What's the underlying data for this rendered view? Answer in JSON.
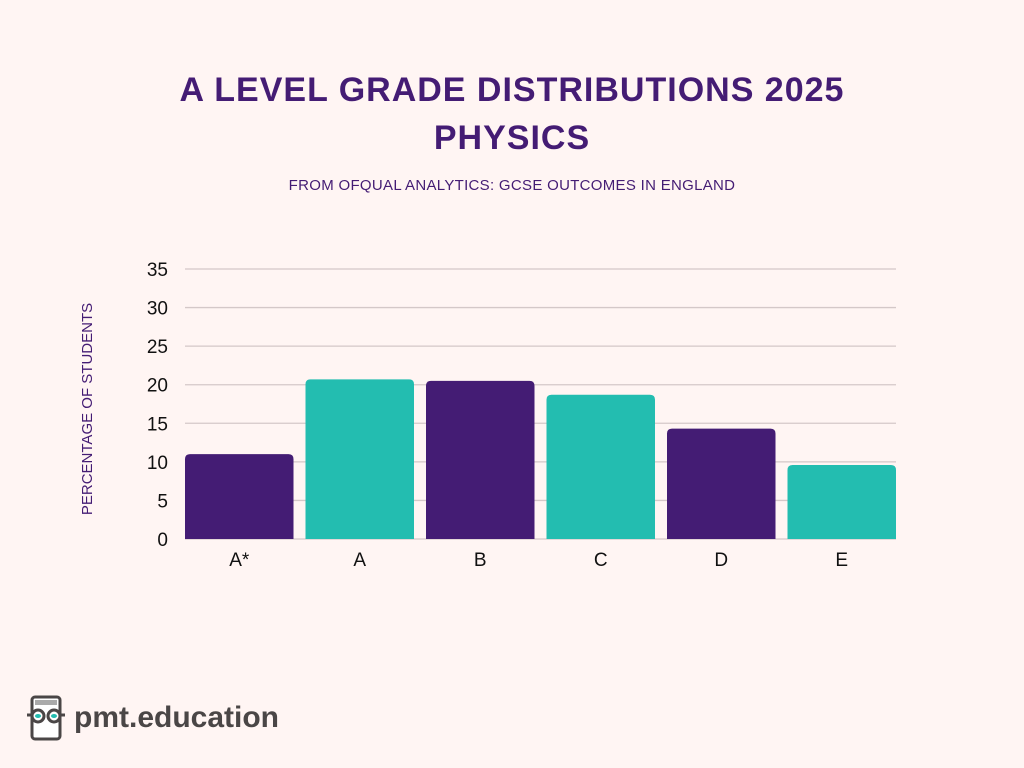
{
  "chart_data": {
    "type": "bar",
    "title": [
      "A LEVEL GRADE DISTRIBUTIONS 2025",
      "PHYSICS"
    ],
    "subtitle": "FROM OFQUAL ANALYTICS: GCSE OUTCOMES IN ENGLAND",
    "xlabel": "",
    "ylabel": "PERCENTAGE OF STUDENTS",
    "categories": [
      "A*",
      "A",
      "B",
      "C",
      "D",
      "E"
    ],
    "values": [
      11.0,
      20.7,
      20.5,
      18.7,
      14.3,
      9.6
    ],
    "ylim": [
      0,
      35
    ],
    "yticks": [
      0,
      5,
      10,
      15,
      20,
      25,
      30,
      35
    ],
    "grid": true,
    "colors": [
      "#441c74",
      "#23bdb0"
    ]
  },
  "branding": {
    "logo_text": "pmt.education",
    "icon": "book-with-glasses-icon"
  }
}
